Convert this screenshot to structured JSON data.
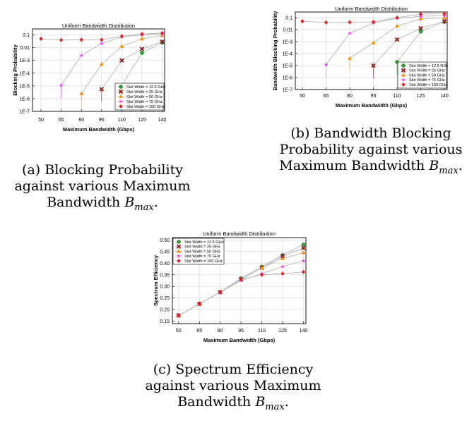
{
  "legend_labels": [
    "Slot Width = 12.5 GHz",
    "Slot Width = 25 GHz",
    "Slot Width = 50 GHz",
    "Slot Width = 75 GHz",
    "Slot Width = 100 GHz"
  ],
  "series_colors": [
    "#2ca02c",
    "#8b1a1a",
    "#ff8c00",
    "#ff33ff",
    "#e8191f"
  ],
  "series_markers": [
    "circle",
    "x",
    "triangle",
    "star",
    "diamond"
  ],
  "captions": [
    {
      "text": "(a) Blocking Probability against various Maximum Bandwidth ",
      "sym": "B",
      "sub": "max",
      "end": "."
    },
    {
      "text": "(b) Bandwidth Blocking Probability against various Maximum Bandwidth ",
      "sym": "B",
      "sub": "max",
      "end": "."
    },
    {
      "text": "(c) Spectrum Efficiency against various Maximum Bandwidth ",
      "sym": "B",
      "sub": "max",
      "end": "."
    }
  ],
  "chart_data": [
    {
      "type": "line",
      "title": "Uniform Bandwidth Distribution",
      "xlabel": "Maximum Bandwidth (Gbps)",
      "ylabel": "Blocking Probability",
      "yscale": "log",
      "x": [
        50,
        65,
        80,
        95,
        110,
        125,
        140
      ],
      "xticks": [
        "50",
        "65",
        "80",
        "95",
        "110",
        "125",
        "140"
      ],
      "yticks": [
        {
          "v": 0.1,
          "t": "0.1"
        },
        {
          "v": 0.01,
          "t": "0.01"
        },
        {
          "v": 0.001,
          "t": "1E-3"
        },
        {
          "v": 0.0001,
          "t": "1E-4"
        },
        {
          "v": 1e-05,
          "t": "1E-5"
        },
        {
          "v": 1e-06,
          "t": "1E-6"
        },
        {
          "v": 1e-07,
          "t": "1E-7"
        }
      ],
      "ylim": [
        1e-07,
        0.3
      ],
      "legend_position": "bottom-right",
      "grid": true,
      "series": [
        {
          "name": "Slot Width = 12.5 GHz",
          "values": [
            null,
            null,
            null,
            null,
            1.1e-05,
            0.004,
            0.025
          ]
        },
        {
          "name": "Slot Width = 25 GHz",
          "values": [
            null,
            null,
            null,
            5.5e-06,
            0.001,
            0.008,
            0.03
          ]
        },
        {
          "name": "Slot Width = 50 GHz",
          "values": [
            null,
            null,
            2.5e-06,
            0.0005,
            0.013,
            0.05,
            0.09
          ]
        },
        {
          "name": "Slot Width = 75 GHz",
          "values": [
            null,
            1.1e-05,
            0.0025,
            0.022,
            0.07,
            0.1,
            0.12
          ]
        },
        {
          "name": "Slot Width = 100 GHz",
          "values": [
            0.05,
            0.04,
            0.042,
            0.042,
            0.08,
            0.12,
            0.14
          ]
        }
      ]
    },
    {
      "type": "line",
      "title": "Uniform Bandwidth Distribution",
      "xlabel": "Maximum Bandwidth (Gbps)",
      "ylabel": "Bandwidth Blocking Probability",
      "yscale": "log",
      "x": [
        50,
        65,
        80,
        95,
        110,
        125,
        140
      ],
      "xticks": [
        "50",
        "65",
        "80",
        "95",
        "110",
        "125",
        "140"
      ],
      "yticks": [
        {
          "v": 0.1,
          "t": "0.1"
        },
        {
          "v": 0.01,
          "t": "0.01"
        },
        {
          "v": 0.001,
          "t": "1E-3"
        },
        {
          "v": 0.0001,
          "t": "1E-4"
        },
        {
          "v": 1e-05,
          "t": "1E-5"
        },
        {
          "v": 1e-06,
          "t": "1E-6"
        },
        {
          "v": 1e-07,
          "t": "1E-7"
        }
      ],
      "ylim": [
        1e-07,
        0.3
      ],
      "legend_position": "bottom-right",
      "grid": true,
      "series": [
        {
          "name": "Slot Width = 12.5 GHz",
          "values": [
            null,
            null,
            null,
            null,
            2e-05,
            0.007,
            0.045
          ]
        },
        {
          "name": "Slot Width = 25 GHz",
          "values": [
            null,
            null,
            null,
            1e-05,
            0.0015,
            0.013,
            0.05
          ]
        },
        {
          "name": "Slot Width = 50 GHz",
          "values": [
            null,
            null,
            4e-05,
            0.0008,
            0.02,
            0.08,
            0.1
          ]
        },
        {
          "name": "Slot Width = 75 GHz",
          "values": [
            null,
            1.2e-05,
            0.005,
            0.035,
            0.09,
            0.13,
            0.15
          ]
        },
        {
          "name": "Slot Width = 100 GHz",
          "values": [
            0.05,
            0.04,
            0.042,
            0.045,
            0.1,
            0.2,
            0.21
          ]
        }
      ]
    },
    {
      "type": "line",
      "title": "Uniform Bandwidth Distribution",
      "xlabel": "Maximum Bandwidth (Gbps)",
      "ylabel": "Spectrum Efficiency",
      "yscale": "linear",
      "x": [
        50,
        65,
        80,
        95,
        110,
        125,
        140
      ],
      "xticks": [
        "50",
        "65",
        "80",
        "95",
        "110",
        "125",
        "140"
      ],
      "yticks": [
        {
          "v": 0.15,
          "t": "0.15"
        },
        {
          "v": 0.2,
          "t": "0.20"
        },
        {
          "v": 0.25,
          "t": "0.25"
        },
        {
          "v": 0.3,
          "t": "0.30"
        },
        {
          "v": 0.35,
          "t": "0.35"
        },
        {
          "v": 0.4,
          "t": "0.40"
        },
        {
          "v": 0.45,
          "t": "0.45"
        },
        {
          "v": 0.5,
          "t": "0.50"
        }
      ],
      "ylim": [
        0.14,
        0.51
      ],
      "legend_position": "top-left",
      "grid": true,
      "series": [
        {
          "name": "Slot Width = 12.5 GHz",
          "values": [
            0.175,
            0.225,
            0.275,
            0.335,
            0.385,
            0.435,
            0.48
          ]
        },
        {
          "name": "Slot Width = 25 GHz",
          "values": [
            0.175,
            0.225,
            0.275,
            0.33,
            0.38,
            0.43,
            0.465
          ]
        },
        {
          "name": "Slot Width = 50 GHz",
          "values": [
            0.175,
            0.225,
            0.275,
            0.33,
            0.38,
            0.42,
            0.445
          ]
        },
        {
          "name": "Slot Width = 75 GHz",
          "values": [
            0.175,
            0.225,
            0.275,
            0.325,
            0.355,
            0.385,
            0.41
          ]
        },
        {
          "name": "Slot Width = 100 GHz",
          "values": [
            0.175,
            0.225,
            0.275,
            0.33,
            0.35,
            0.355,
            0.362
          ]
        }
      ]
    }
  ]
}
